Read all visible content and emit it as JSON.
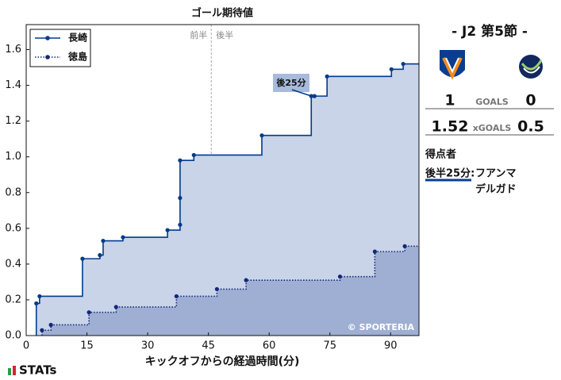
{
  "chart_data": {
    "type": "step",
    "title": "ゴール期待値",
    "x_label": "キックオフからの経過時間(分)",
    "xlim": [
      0,
      97
    ],
    "ylim": [
      0,
      1.74
    ],
    "xticks": [
      0,
      15,
      30,
      45,
      60,
      75,
      90
    ],
    "yticks": [
      {
        "value": 0,
        "label": "0.0"
      },
      0.2,
      0.4,
      0.6,
      0.8,
      {
        "value": 1,
        "label": "1.0"
      },
      1.2,
      1.4,
      1.6
    ],
    "halftime": {
      "x": 45.7,
      "labels": [
        "前半",
        "後半"
      ]
    },
    "series": [
      {
        "name": "長崎",
        "color": "#003a8c",
        "fill": "#c9d4e8",
        "style": "solid",
        "x": [
          2.5,
          3.3,
          13.9,
          18.2,
          19.0,
          23.9,
          34.9,
          38.0,
          38.0,
          38.0,
          41.4,
          58.2,
          70.4,
          71.2,
          74.3,
          90.2,
          93.1
        ],
        "values": [
          0.18,
          0.22,
          0.43,
          0.45,
          0.53,
          0.55,
          0.59,
          0.62,
          0.77,
          0.98,
          1.01,
          1.12,
          1.34,
          1.34,
          1.45,
          1.49,
          1.52
        ]
      },
      {
        "name": "徳島",
        "color": "#14287a",
        "fill": "#9fafd3",
        "style": "dotted",
        "x": [
          3.9,
          6.1,
          15.5,
          22.2,
          37.1,
          47.1,
          54.3,
          77.5,
          86.1,
          93.5
        ],
        "values": [
          0.03,
          0.06,
          0.13,
          0.16,
          0.22,
          0.26,
          0.31,
          0.33,
          0.47,
          0.5
        ]
      }
    ],
    "annotation": "後25分",
    "watermark": "© SPORTERIA",
    "legend": "upper left"
  },
  "match": {
    "round": "- J2 第5節 -",
    "goals": {
      "label": "GOALS",
      "home": 1,
      "away": 0
    },
    "xgoals": {
      "label": "xGOALS",
      "home": 1.52,
      "away": 0.5
    },
    "scorers_title": "得点者",
    "scorers": [
      {
        "time": "後半25分:",
        "name": [
          "フアンマ",
          "デルガド"
        ]
      }
    ],
    "brand": "STATs"
  }
}
